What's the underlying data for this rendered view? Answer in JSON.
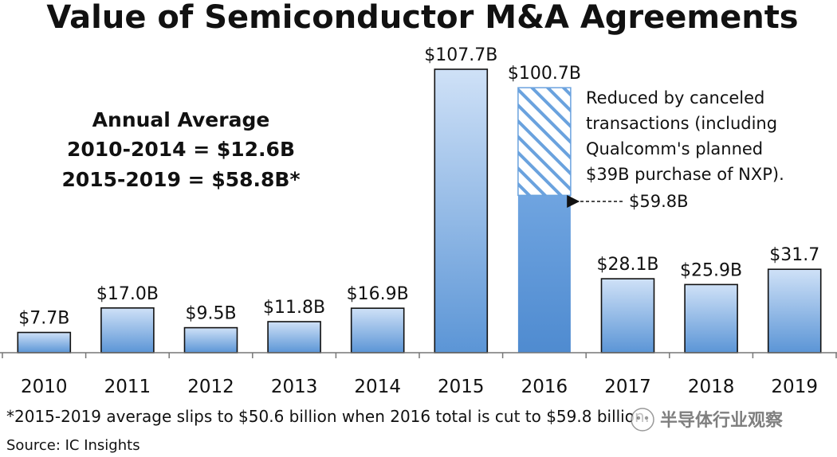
{
  "chart_data": {
    "type": "bar",
    "title": "Value of Semiconductor M&A Agreements",
    "categories": [
      "2010",
      "2011",
      "2012",
      "2013",
      "2014",
      "2015",
      "2016",
      "2017",
      "2018",
      "2019"
    ],
    "values": [
      7.7,
      17.0,
      9.5,
      11.8,
      16.9,
      107.7,
      100.7,
      28.1,
      25.9,
      31.7
    ],
    "data_labels": [
      "$7.7B",
      "$17.0B",
      "$9.5B",
      "$11.8B",
      "$16.9B",
      "$107.7B",
      "$100.7B",
      "$28.1B",
      "$25.9B",
      "$31.7"
    ],
    "reduced": {
      "category": "2016",
      "value": 59.8,
      "label": "$59.8B"
    },
    "annual_average": {
      "heading": "Annual Average",
      "line1": "2010-2014 = $12.6B",
      "line2": "2015-2019 = $58.8B*"
    },
    "annotation": [
      "Reduced by canceled",
      "transactions (including",
      "Qualcomm's planned",
      "$39B purchase of NXP)."
    ],
    "footnote": "*2015-2019 average slips to $50.6 billion when 2016 total is cut to $59.8 billion.",
    "source": "Source: IC Insights",
    "ylim": [
      0,
      107.7
    ],
    "grid": false,
    "colors": {
      "bar_top": "#cde0f7",
      "bar_bottom": "#5b95d6",
      "bar_edge": "#111111",
      "hatch": "#6aa2de"
    }
  },
  "watermark": "半导体行业观察"
}
